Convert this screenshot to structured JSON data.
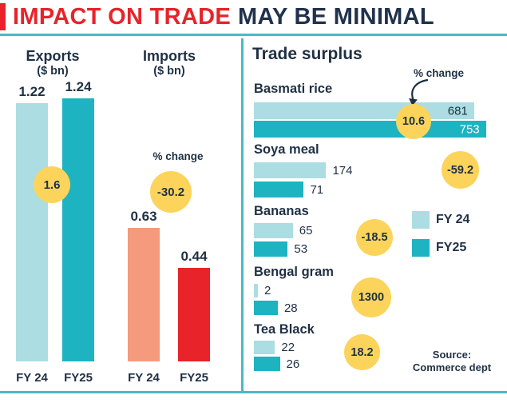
{
  "title": {
    "highlight": "IMPACT ON TRADE",
    "rest": "MAY BE MINIMAL"
  },
  "labels": {
    "pct_change": "% change",
    "source_line1": "Source:",
    "source_line2": "Commerce dept"
  },
  "colors": {
    "accent_red": "#e8232a",
    "navy_text": "#20324c",
    "teal_light": "#abdde2",
    "teal_dark": "#1db3c1",
    "salmon": "#f59a7d",
    "bar_red": "#e8232a",
    "badge_yellow": "#fcd45c",
    "divider_teal": "#4ab9c4"
  },
  "chart_data": [
    {
      "type": "bar",
      "orientation": "vertical",
      "title": "Exports and Imports ($ bn)",
      "categories": [
        "FY 24",
        "FY25"
      ],
      "series": [
        {
          "name": "Exports",
          "unit": "($ bn)",
          "values": [
            1.22,
            1.24
          ],
          "pct_change": 1.6
        },
        {
          "name": "Imports",
          "unit": "($ bn)",
          "values": [
            0.63,
            0.44
          ],
          "pct_change": -30.2
        }
      ],
      "ylim": [
        0,
        1.3
      ],
      "grid": false,
      "annotations": [
        "% change badges in yellow circles"
      ]
    },
    {
      "type": "bar",
      "orientation": "horizontal",
      "title": "Trade surplus",
      "categories": [
        "Basmati rice",
        "Soya meal",
        "Bananas",
        "Bengal gram",
        "Tea Black"
      ],
      "series": [
        {
          "name": "FY 24",
          "values": [
            681,
            174,
            65,
            2,
            22
          ]
        },
        {
          "name": "FY25",
          "values": [
            753,
            71,
            53,
            28,
            26
          ]
        }
      ],
      "pct_change": [
        10.6,
        -59.2,
        -18.5,
        1300,
        18.2
      ],
      "legend_position": "middle-right",
      "grid": false,
      "source": "Source: Commerce dept"
    }
  ]
}
